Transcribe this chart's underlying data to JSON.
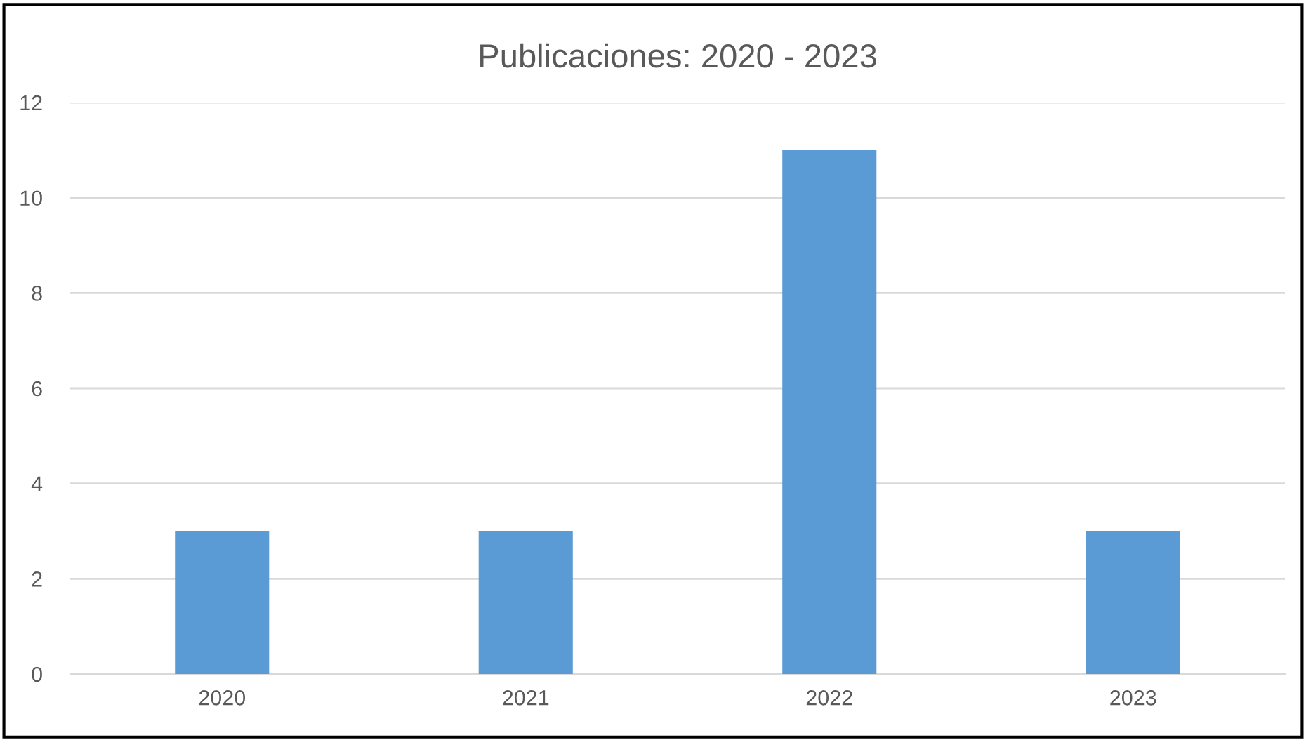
{
  "chart_data": {
    "type": "bar",
    "title": "Publicaciones: 2020 - 2023",
    "categories": [
      "2020",
      "2021",
      "2022",
      "2023"
    ],
    "values": [
      3,
      3,
      11,
      3
    ],
    "color": "#5b9bd5",
    "ylim": [
      0,
      12
    ],
    "yticks": [
      0,
      2,
      4,
      6,
      8,
      10,
      12
    ],
    "grid": "y",
    "legend": false
  }
}
